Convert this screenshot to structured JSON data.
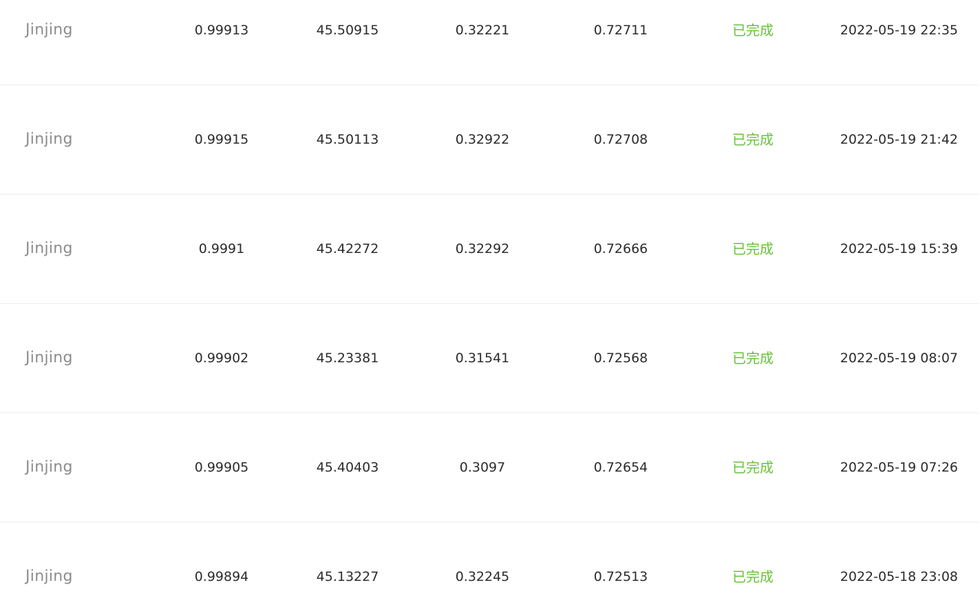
{
  "table": {
    "status_color": "#67c23a",
    "rows": [
      {
        "user": "Jinjing",
        "m1": "0.99913",
        "m2": "45.50915",
        "m3": "0.32221",
        "m4": "0.72711",
        "status": "已完成",
        "time": "2022-05-19 22:35"
      },
      {
        "user": "Jinjing",
        "m1": "0.99915",
        "m2": "45.50113",
        "m3": "0.32922",
        "m4": "0.72708",
        "status": "已完成",
        "time": "2022-05-19 21:42"
      },
      {
        "user": "Jinjing",
        "m1": "0.9991",
        "m2": "45.42272",
        "m3": "0.32292",
        "m4": "0.72666",
        "status": "已完成",
        "time": "2022-05-19 15:39"
      },
      {
        "user": "Jinjing",
        "m1": "0.99902",
        "m2": "45.23381",
        "m3": "0.31541",
        "m4": "0.72568",
        "status": "已完成",
        "time": "2022-05-19 08:07"
      },
      {
        "user": "Jinjing",
        "m1": "0.99905",
        "m2": "45.40403",
        "m3": "0.3097",
        "m4": "0.72654",
        "status": "已完成",
        "time": "2022-05-19 07:26"
      },
      {
        "user": "Jinjing",
        "m1": "0.99894",
        "m2": "45.13227",
        "m3": "0.32245",
        "m4": "0.72513",
        "status": "已完成",
        "time": "2022-05-18 23:08"
      }
    ]
  }
}
